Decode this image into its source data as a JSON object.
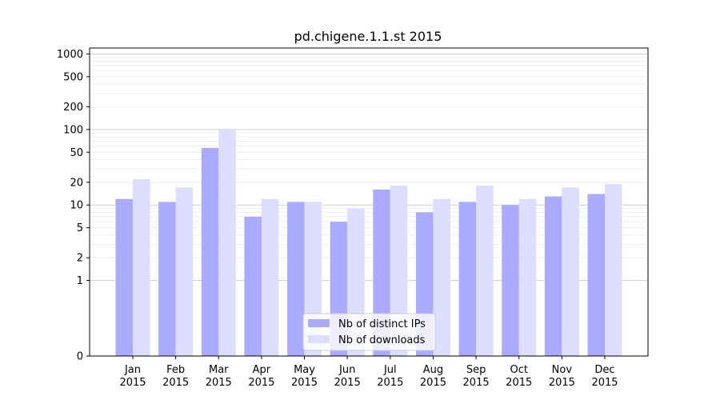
{
  "chart_data": {
    "type": "bar",
    "title": "pd.chigene.1.1.st 2015",
    "xlabel": "",
    "ylabel": "",
    "y_scale": "symlog",
    "y_ticks": [
      0,
      1,
      2,
      5,
      10,
      20,
      50,
      100,
      200,
      500,
      1000
    ],
    "y_tick_labels": [
      "0",
      "1",
      "2",
      "5",
      "10",
      "20",
      "50",
      "100",
      "200",
      "500",
      "1000"
    ],
    "ylim": [
      0,
      1200
    ],
    "categories": [
      [
        "Jan",
        "2015"
      ],
      [
        "Feb",
        "2015"
      ],
      [
        "Mar",
        "2015"
      ],
      [
        "Apr",
        "2015"
      ],
      [
        "May",
        "2015"
      ],
      [
        "Jun",
        "2015"
      ],
      [
        "Jul",
        "2015"
      ],
      [
        "Aug",
        "2015"
      ],
      [
        "Sep",
        "2015"
      ],
      [
        "Oct",
        "2015"
      ],
      [
        "Nov",
        "2015"
      ],
      [
        "Dec",
        "2015"
      ]
    ],
    "series": [
      {
        "name": "Nb of distinct IPs",
        "color": "#aaaaff",
        "values": [
          12,
          11,
          57,
          7,
          11,
          6,
          16,
          8,
          11,
          10,
          13,
          14
        ]
      },
      {
        "name": "Nb of downloads",
        "color": "#ddddff",
        "values": [
          22,
          17,
          100,
          12,
          11,
          9,
          18,
          12,
          18,
          12,
          17,
          19
        ]
      }
    ],
    "grid": "horizontal",
    "legend": "lower-center"
  }
}
